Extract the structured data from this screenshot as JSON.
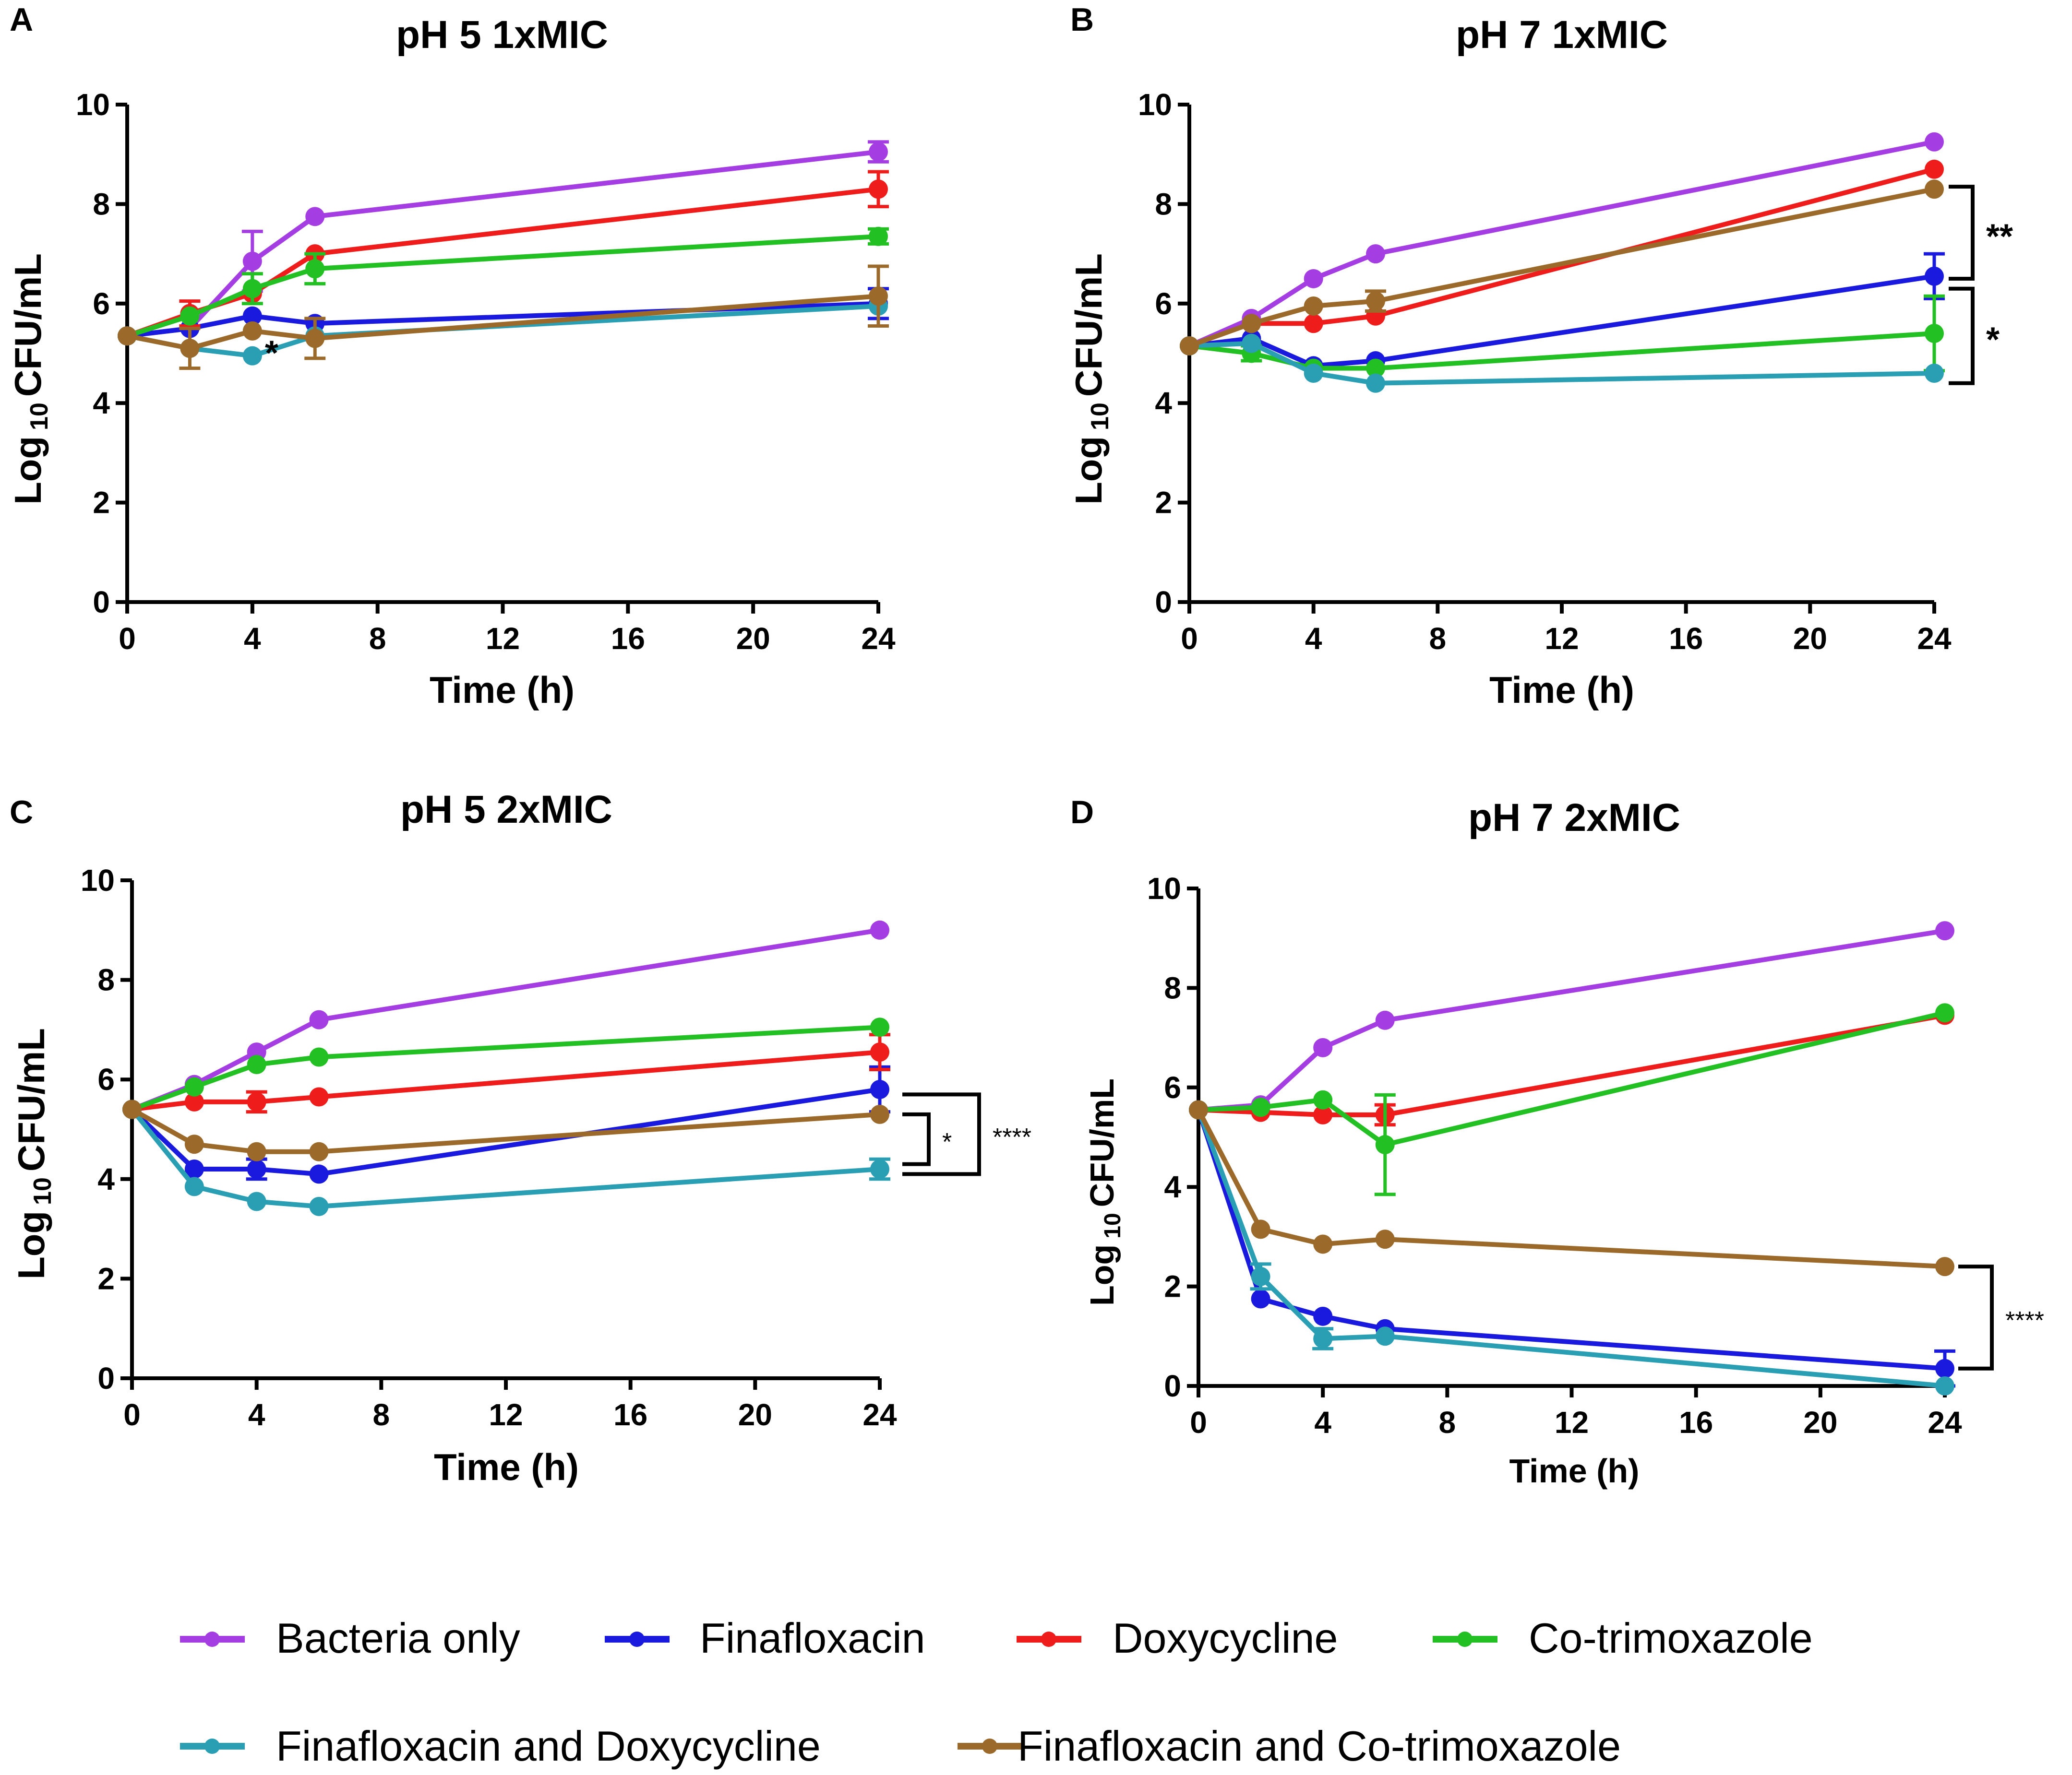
{
  "chart_data": [
    {
      "panel": "A",
      "type": "line",
      "title": "pH 5 1xMIC",
      "xlabel": "Time (h)",
      "ylabel_prefix": "Log",
      "ylabel_sub": "10",
      "ylabel_suffix": "CFU/mL",
      "xlim": [
        0,
        24
      ],
      "ylim": [
        0,
        10
      ],
      "xticks": [
        0,
        4,
        8,
        12,
        16,
        20,
        24
      ],
      "yticks": [
        0,
        2,
        4,
        6,
        8,
        10
      ],
      "x": [
        0,
        2,
        4,
        6,
        24
      ],
      "series": [
        {
          "name": "Bacteria only",
          "values": [
            5.35,
            5.5,
            6.85,
            7.75,
            9.05
          ],
          "errors": [
            0,
            0,
            0.6,
            0,
            0.2
          ]
        },
        {
          "name": "Finafloxacin",
          "values": [
            5.35,
            5.5,
            5.75,
            5.6,
            6.0
          ],
          "errors": [
            0,
            0,
            0,
            0,
            0.3
          ]
        },
        {
          "name": "Doxycycline",
          "values": [
            5.35,
            5.8,
            6.2,
            7.0,
            8.3
          ],
          "errors": [
            0,
            0.25,
            0,
            0,
            0.35
          ]
        },
        {
          "name": "Co-trimoxazole",
          "values": [
            5.35,
            5.75,
            6.3,
            6.7,
            7.35
          ],
          "errors": [
            0,
            0,
            0.3,
            0.3,
            0.15
          ]
        },
        {
          "name": "Finafloxacin and Doxycycline",
          "values": [
            5.35,
            5.1,
            4.95,
            5.35,
            5.95
          ],
          "errors": [
            0,
            0,
            0,
            0,
            0
          ]
        },
        {
          "name": "Finafloxacin and Co-trimoxazole",
          "values": [
            5.35,
            5.1,
            5.45,
            5.3,
            6.15
          ],
          "errors": [
            0,
            0.4,
            0,
            0.4,
            0.6
          ]
        }
      ],
      "annotations": [
        {
          "text": "*",
          "x": 4.4,
          "y": 5.25
        }
      ]
    },
    {
      "panel": "B",
      "type": "line",
      "title": "pH 7 1xMIC",
      "xlabel": "Time (h)",
      "ylabel_prefix": "Log",
      "ylabel_sub": "10",
      "ylabel_suffix": "CFU/mL",
      "xlim": [
        0,
        24
      ],
      "ylim": [
        0,
        10
      ],
      "xticks": [
        0,
        4,
        8,
        12,
        16,
        20,
        24
      ],
      "yticks": [
        0,
        2,
        4,
        6,
        8,
        10
      ],
      "x": [
        0,
        2,
        4,
        6,
        24
      ],
      "series": [
        {
          "name": "Bacteria only",
          "values": [
            5.15,
            5.7,
            6.5,
            7.0,
            9.25
          ],
          "errors": [
            0,
            0,
            0,
            0,
            0
          ]
        },
        {
          "name": "Finafloxacin",
          "values": [
            5.15,
            5.3,
            4.75,
            4.85,
            6.55
          ],
          "errors": [
            0,
            0,
            0,
            0,
            0.45
          ]
        },
        {
          "name": "Doxycycline",
          "values": [
            5.15,
            5.6,
            5.6,
            5.75,
            8.7
          ],
          "errors": [
            0,
            0,
            0,
            0,
            0
          ]
        },
        {
          "name": "Co-trimoxazole",
          "values": [
            5.15,
            5.0,
            4.7,
            4.7,
            5.4
          ],
          "errors": [
            0,
            0.15,
            0,
            0,
            0.75
          ]
        },
        {
          "name": "Finafloxacin and Doxycycline",
          "values": [
            5.15,
            5.2,
            4.6,
            4.4,
            4.6
          ],
          "errors": [
            0,
            0,
            0,
            0,
            0
          ]
        },
        {
          "name": "Finafloxacin and Co-trimoxazole",
          "values": [
            5.15,
            5.6,
            5.95,
            6.05,
            8.3
          ],
          "errors": [
            0,
            0,
            0,
            0.2,
            0
          ]
        }
      ],
      "brackets": [
        {
          "y1": 8.35,
          "y2": 6.5,
          "label": "**"
        },
        {
          "y1": 6.3,
          "y2": 4.4,
          "label": "*"
        }
      ]
    },
    {
      "panel": "C",
      "type": "line",
      "title": "pH 5 2xMIC",
      "xlabel": "Time (h)",
      "ylabel_prefix": "Log",
      "ylabel_sub": "10",
      "ylabel_suffix": "CFU/mL",
      "xlim": [
        0,
        24
      ],
      "ylim": [
        0,
        10
      ],
      "xticks": [
        0,
        4,
        8,
        12,
        16,
        20,
        24
      ],
      "yticks": [
        0,
        2,
        4,
        6,
        8,
        10
      ],
      "x": [
        0,
        2,
        4,
        6,
        24
      ],
      "series": [
        {
          "name": "Bacteria only",
          "values": [
            5.4,
            5.9,
            6.55,
            7.2,
            9.0
          ],
          "errors": [
            0,
            0,
            0,
            0,
            0
          ]
        },
        {
          "name": "Finafloxacin",
          "values": [
            5.4,
            4.2,
            4.2,
            4.1,
            5.8
          ],
          "errors": [
            0,
            0,
            0.2,
            0,
            0.45
          ]
        },
        {
          "name": "Doxycycline",
          "values": [
            5.4,
            5.55,
            5.55,
            5.65,
            6.55
          ],
          "errors": [
            0,
            0,
            0.2,
            0,
            0.35
          ]
        },
        {
          "name": "Co-trimoxazole",
          "values": [
            5.4,
            5.85,
            6.3,
            6.45,
            7.05
          ],
          "errors": [
            0,
            0,
            0,
            0,
            0
          ]
        },
        {
          "name": "Finafloxacin and Doxycycline",
          "values": [
            5.4,
            3.85,
            3.55,
            3.45,
            4.2
          ],
          "errors": [
            0,
            0,
            0,
            0,
            0.2
          ]
        },
        {
          "name": "Finafloxacin and Co-trimoxazole",
          "values": [
            5.4,
            4.7,
            4.55,
            4.55,
            5.3
          ],
          "errors": [
            0,
            0,
            0,
            0,
            0
          ]
        }
      ],
      "brackets": [
        {
          "y1": 5.3,
          "y2": 4.3,
          "label": "*"
        },
        {
          "y1": 5.7,
          "y2": 4.1,
          "label": "****"
        }
      ]
    },
    {
      "panel": "D",
      "type": "line",
      "title": "pH 7 2xMIC",
      "xlabel": "Time (h)",
      "ylabel_prefix": "Log",
      "ylabel_sub": "10",
      "ylabel_suffix": "CFU/mL",
      "xlim": [
        0,
        24
      ],
      "ylim": [
        0,
        10
      ],
      "xticks": [
        0,
        4,
        8,
        12,
        16,
        20,
        24
      ],
      "yticks": [
        0,
        2,
        4,
        6,
        8,
        10
      ],
      "x": [
        0,
        2,
        4,
        6,
        24
      ],
      "series": [
        {
          "name": "Bacteria only",
          "values": [
            5.55,
            5.65,
            6.8,
            7.35,
            9.15
          ],
          "errors": [
            0,
            0,
            0,
            0,
            0
          ]
        },
        {
          "name": "Finafloxacin",
          "values": [
            5.55,
            1.75,
            1.4,
            1.15,
            0.35
          ],
          "errors": [
            0,
            0,
            0,
            0,
            0.35
          ]
        },
        {
          "name": "Doxycycline",
          "values": [
            5.55,
            5.5,
            5.45,
            5.45,
            7.45
          ],
          "errors": [
            0,
            0,
            0,
            0.2,
            0
          ]
        },
        {
          "name": "Co-trimoxazole",
          "values": [
            5.55,
            5.6,
            5.75,
            4.85,
            7.5
          ],
          "errors": [
            0,
            0,
            0,
            1.0,
            0
          ]
        },
        {
          "name": "Finafloxacin and Doxycycline",
          "values": [
            5.55,
            2.2,
            0.95,
            1.0,
            0.0
          ],
          "errors": [
            0,
            0.25,
            0.2,
            0,
            0
          ]
        },
        {
          "name": "Finafloxacin and Co-trimoxazole",
          "values": [
            5.55,
            3.15,
            2.85,
            2.95,
            2.4
          ],
          "errors": [
            0,
            0,
            0,
            0,
            0
          ]
        }
      ],
      "brackets": [
        {
          "y1": 2.4,
          "y2": 0.35,
          "label": "****"
        }
      ]
    }
  ],
  "legend": {
    "entries": [
      {
        "name": "Bacteria only",
        "color": "#a43ee3"
      },
      {
        "name": "Finafloxacin",
        "color": "#1a1adf"
      },
      {
        "name": "Doxycycline",
        "color": "#ef1c1c"
      },
      {
        "name": "Co-trimoxazole",
        "color": "#22c022"
      },
      {
        "name": "Finafloxacin and Doxycycline",
        "color": "#2a9fb4"
      },
      {
        "name": "Finafloxacin and Co-trimoxazole",
        "color": "#9b6a2b"
      }
    ]
  }
}
